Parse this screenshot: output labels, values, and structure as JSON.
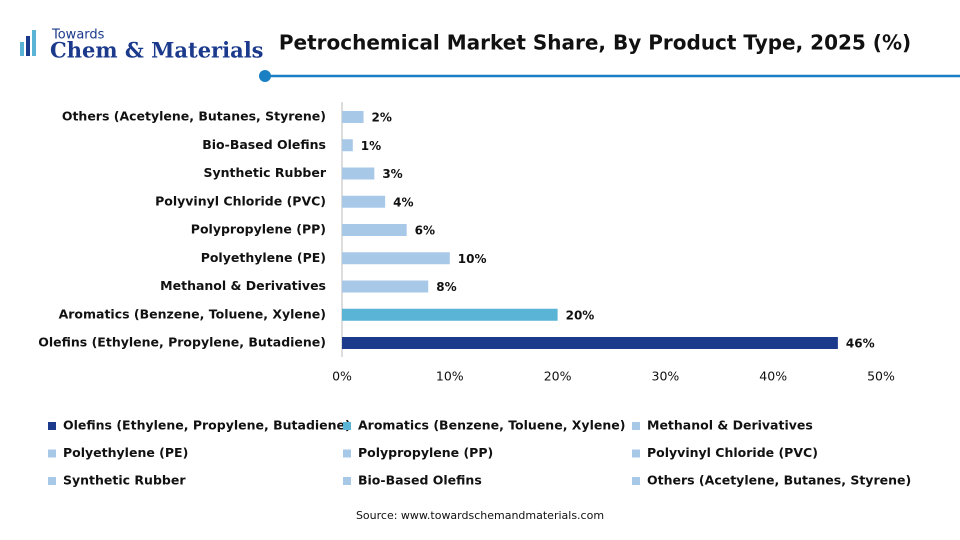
{
  "logo": {
    "line1": "Towards",
    "line2": "Chem & Materials"
  },
  "chart_data": {
    "type": "bar",
    "orientation": "horizontal",
    "title": "Petrochemical Market Share, By Product Type, 2025 (%)",
    "categories": [
      "Olefins (Ethylene, Propylene, Butadiene)",
      "Aromatics (Benzene, Toluene, Xylene)",
      "Methanol & Derivatives",
      "Polyethylene (PE)",
      "Polypropylene (PP)",
      "Polyvinyl Chloride (PVC)",
      "Synthetic Rubber",
      "Bio-Based Olefins",
      "Others (Acetylene, Butanes, Styrene)"
    ],
    "values": [
      46,
      20,
      8,
      10,
      6,
      4,
      3,
      1,
      2
    ],
    "value_labels": [
      "46%",
      "20%",
      "8%",
      "10%",
      "6%",
      "4%",
      "3%",
      "1%",
      "2%"
    ],
    "colors": [
      "#1b3a8c",
      "#5ab4d6",
      "#a8c8e8",
      "#a8c8e8",
      "#a8c8e8",
      "#a8c8e8",
      "#a8c8e8",
      "#a8c8e8",
      "#a8c8e8"
    ],
    "xlim": [
      0,
      50
    ],
    "xticks": [
      {
        "value": 0,
        "label": "0%"
      },
      {
        "value": 10,
        "label": "10%"
      },
      {
        "value": 20,
        "label": "20%"
      },
      {
        "value": 30,
        "label": "30%"
      },
      {
        "value": 40,
        "label": "40%"
      },
      {
        "value": 50,
        "label": "50%"
      }
    ],
    "grid": false,
    "legend": "bottom",
    "source": "Source: www.towardschemandmaterials.com"
  }
}
